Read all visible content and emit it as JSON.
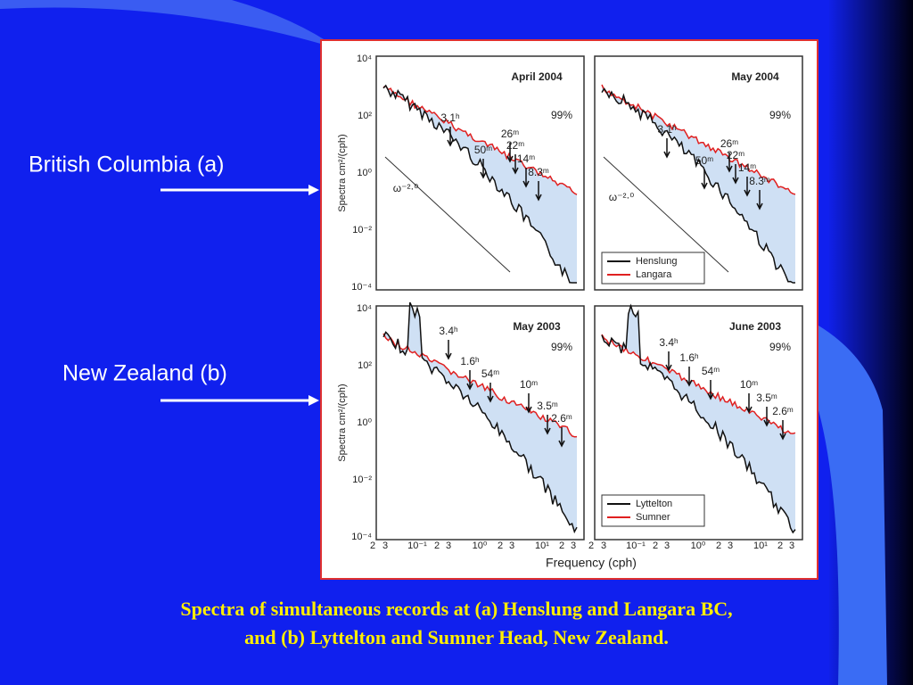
{
  "slide": {
    "labels": [
      "British Columbia  (a)",
      "New Zealand  (b)"
    ],
    "caption": [
      "Spectra of simultaneous records at (a) Henslung and Langara BC,",
      "and (b) Lyttelton and Sumner Head, New Zealand."
    ]
  },
  "figure": {
    "y_axis_label": "Spectra cm²/(cph)",
    "x_axis_label": "Frequency  (cph)",
    "y_tick_labels": [
      "10⁴",
      "10²",
      "10⁰",
      "10⁻²",
      "10⁻⁴"
    ],
    "x_tick_labels": [
      "2",
      "3",
      "10⁻¹",
      "2",
      "3",
      "10⁰",
      "2",
      "3",
      "10¹",
      "2",
      "3"
    ],
    "panels": [
      {
        "title": "April 2004",
        "confidence": "99%",
        "annotations": [
          "3.1ʰ",
          "50ᵐ",
          "26ᵐ",
          "22ᵐ",
          "14ᵐ",
          "8.3ᵐ",
          "ω⁻²·⁰"
        ]
      },
      {
        "title": "May 2004",
        "confidence": "99%",
        "annotations": [
          "3.1ʰ",
          "50ᵐ",
          "26ᵐ",
          "22ᵐ",
          "14ᵐ",
          "8.3ᵐ",
          "ω⁻²·⁰"
        ],
        "legend": [
          "Henslung",
          "Langara"
        ]
      },
      {
        "title": "May 2003",
        "confidence": "99%",
        "annotations": [
          "3.4ʰ",
          "1.6ʰ",
          "54ᵐ",
          "10ᵐ",
          "3.5ᵐ",
          "2.6ᵐ"
        ]
      },
      {
        "title": "June 2003",
        "confidence": "99%",
        "annotations": [
          "3.4ʰ",
          "1.6ʰ",
          "54ᵐ",
          "10ᵐ",
          "3.5ᵐ",
          "2.6ᵐ"
        ],
        "legend": [
          "Lyttelton",
          "Sumner"
        ]
      }
    ]
  }
}
